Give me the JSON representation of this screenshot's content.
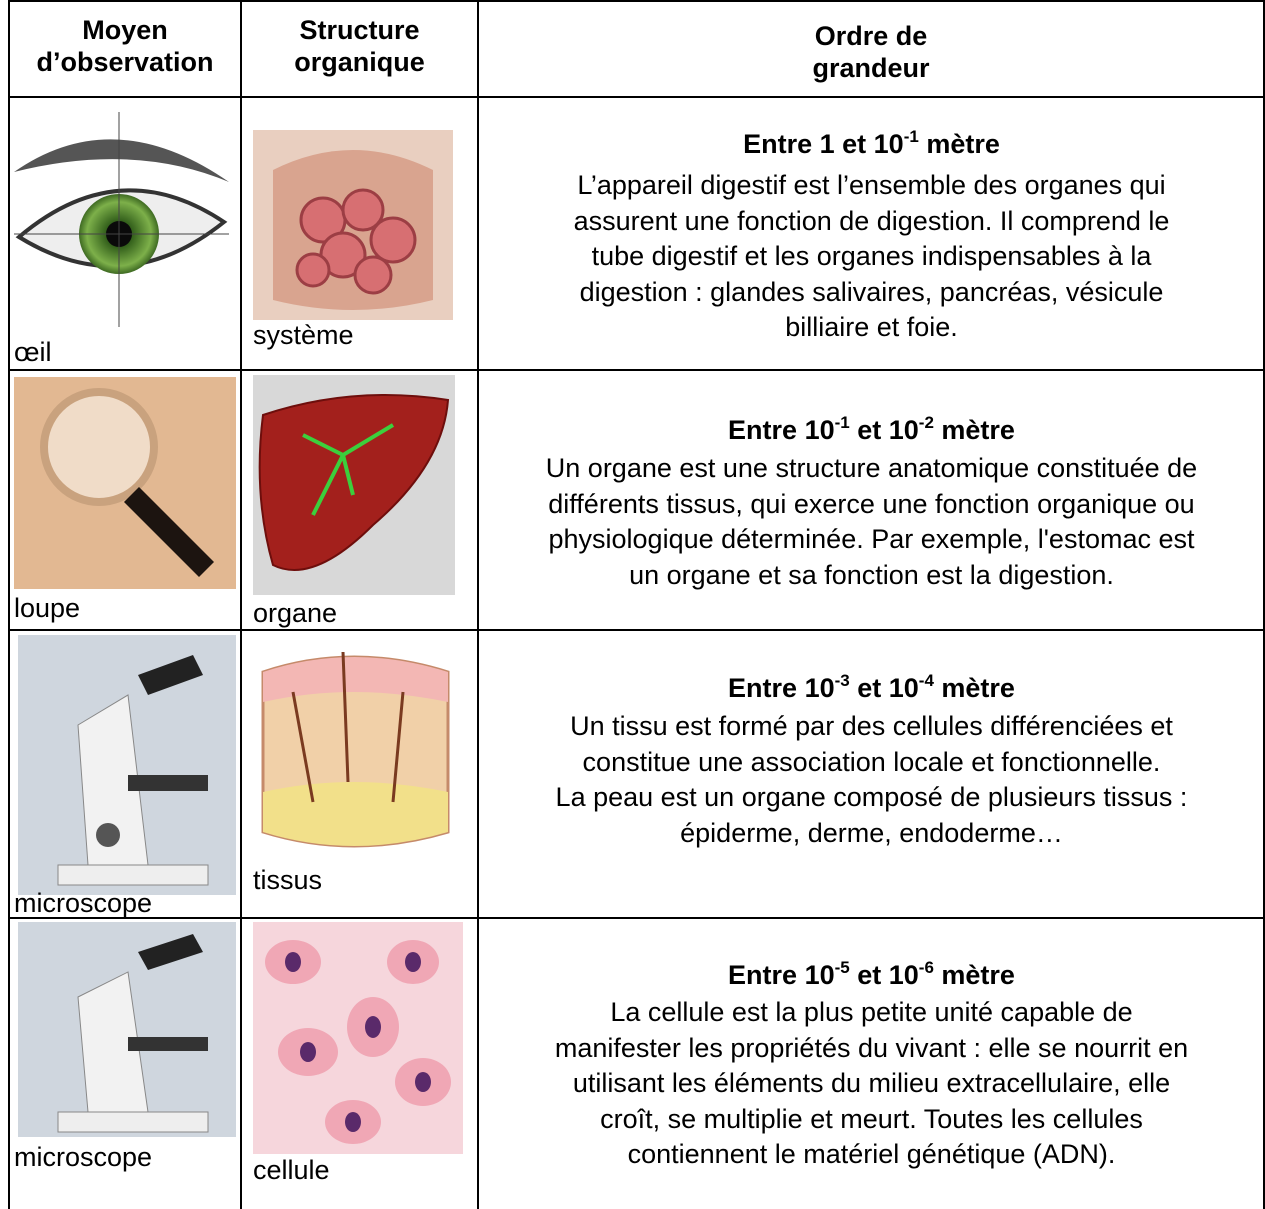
{
  "table": {
    "header": [
      "Moyen\nd’observation",
      "Structure\norganique",
      "Ordre de\ngrandeur"
    ],
    "rows": [
      {
        "instrument": "œil",
        "structure": "système",
        "title": [
          "Entre 1 et 10",
          "-1",
          " mètre"
        ],
        "description": [
          "L’appareil digestif est l’ensemble des organes qui",
          "assurent une fonction de digestion. Il comprend le",
          "tube digestif et les organes indispensables à la",
          "digestion : glandes salivaires, pancréas, vésicule",
          "billiaire et foie."
        ]
      },
      {
        "instrument": "loupe",
        "structure": "organe",
        "title": [
          "Entre 10",
          "-1",
          " et 10",
          "-2",
          " mètre"
        ],
        "description": [
          "Un organe est une structure anatomique constituée de",
          "différents tissus, qui exerce une fonction organique ou",
          "physiologique déterminée. Par exemple, l'estomac est",
          "un organe et sa fonction est la digestion."
        ]
      },
      {
        "instrument": "microscope",
        "structure": "tissus",
        "title": [
          "Entre 10",
          "-3",
          " et 10",
          "-4",
          " mètre"
        ],
        "description": [
          "Un tissu est formé par des cellules différenciées et",
          "constitue une association locale et fonctionnelle.",
          "La peau est un organe composé de plusieurs tissus :",
          "épiderme, derme, endoderme…"
        ]
      },
      {
        "instrument": "microscope",
        "structure": "cellule",
        "title": [
          "Entre 10",
          "-5",
          " et 10",
          "-6",
          " mètre"
        ],
        "description": [
          "La cellule est la plus petite unité capable de",
          "manifester les propriétés du vivant : elle se nourrit en",
          "utilisant les éléments du milieu extracellulaire, elle",
          "croît, se multiplie et meurt. Toutes les cellules",
          "contiennent le matériel génétique (ADN)."
        ]
      }
    ]
  }
}
